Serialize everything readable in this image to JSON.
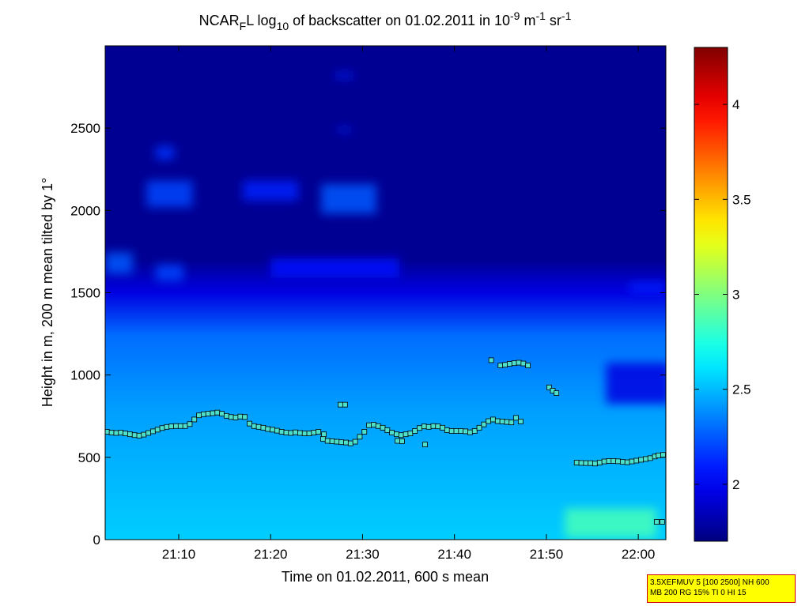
{
  "chart_data": {
    "type": "heatmap",
    "title": {
      "prefix": "NCAR",
      "sub1": "F",
      "mid1": "L log",
      "sub2": "10",
      "mid2": " of backscatter on 01.02.2011 in 10",
      "sup1": "-9",
      "mid3": " m",
      "sup2": "-1",
      "mid4": " sr",
      "sup3": "-1"
    },
    "xlabel": "Time on 01.02.2011, 600 s mean",
    "ylabel": "Height in m, 200 m mean tilted by 1°",
    "x_unit": "minutes after 21:00",
    "xlim": [
      2,
      63
    ],
    "ylim": [
      0,
      3000
    ],
    "x_ticks": [
      {
        "value": 10,
        "label": "21:10"
      },
      {
        "value": 20,
        "label": "21:20"
      },
      {
        "value": 30,
        "label": "21:30"
      },
      {
        "value": 40,
        "label": "21:40"
      },
      {
        "value": 50,
        "label": "21:50"
      },
      {
        "value": 60,
        "label": "22:00"
      }
    ],
    "y_ticks": [
      {
        "value": 0,
        "label": "0"
      },
      {
        "value": 500,
        "label": "500"
      },
      {
        "value": 1000,
        "label": "1000"
      },
      {
        "value": 1500,
        "label": "1500"
      },
      {
        "value": 2000,
        "label": "2000"
      },
      {
        "value": 2500,
        "label": "2500"
      }
    ],
    "colorbar": {
      "range": [
        1.7,
        4.3
      ],
      "ticks": [
        {
          "value": 2,
          "label": "2"
        },
        {
          "value": 2.5,
          "label": "2.5"
        },
        {
          "value": 3,
          "label": "3"
        },
        {
          "value": 3.5,
          "label": "3.5"
        },
        {
          "value": 4,
          "label": "4"
        }
      ],
      "colormap": "jet"
    },
    "field": {
      "surface_value": 2.55,
      "aerosol_top_value": 2.3,
      "free_troposphere_value": 1.75,
      "aerosol_top_height": [
        {
          "x": 2,
          "y": 1350
        },
        {
          "x": 10,
          "y": 1380
        },
        {
          "x": 20,
          "y": 1400
        },
        {
          "x": 30,
          "y": 1350
        },
        {
          "x": 40,
          "y": 1300
        },
        {
          "x": 50,
          "y": 1250
        },
        {
          "x": 55,
          "y": 1220
        },
        {
          "x": 63,
          "y": 1200
        }
      ],
      "patches": [
        {
          "x": 3.5,
          "y": 1680,
          "w": 3,
          "h": 130,
          "value": 2.25
        },
        {
          "x": 9,
          "y": 1620,
          "w": 3,
          "h": 100,
          "value": 2.2
        },
        {
          "x": 9,
          "y": 2100,
          "w": 5,
          "h": 160,
          "value": 2.2
        },
        {
          "x": 8.5,
          "y": 2350,
          "w": 2,
          "h": 80,
          "value": 2.15
        },
        {
          "x": 20,
          "y": 2120,
          "w": 6,
          "h": 120,
          "value": 2.1
        },
        {
          "x": 28.5,
          "y": 2070,
          "w": 6,
          "h": 180,
          "value": 2.25
        },
        {
          "x": 27,
          "y": 1650,
          "w": 14,
          "h": 120,
          "value": 2.05
        },
        {
          "x": 61,
          "y": 1530,
          "w": 4,
          "h": 60,
          "value": 2.1
        },
        {
          "x": 60,
          "y": 950,
          "w": 7,
          "h": 250,
          "value": 1.95
        },
        {
          "x": 28,
          "y": 2820,
          "w": 2,
          "h": 30,
          "value": 2.1
        },
        {
          "x": 28,
          "y": 2490,
          "w": 1.5,
          "h": 25,
          "value": 2.1
        },
        {
          "x": 57,
          "y": 100,
          "w": 10,
          "h": 180,
          "value": 2.85
        }
      ]
    },
    "markers": {
      "mid_layer": [
        {
          "x": 2.2,
          "y": 655
        },
        {
          "x": 2.7,
          "y": 650
        },
        {
          "x": 3.2,
          "y": 648
        },
        {
          "x": 3.7,
          "y": 650
        },
        {
          "x": 4.2,
          "y": 645
        },
        {
          "x": 4.7,
          "y": 640
        },
        {
          "x": 5.2,
          "y": 635
        },
        {
          "x": 5.7,
          "y": 632
        },
        {
          "x": 6.2,
          "y": 638
        },
        {
          "x": 6.7,
          "y": 648
        },
        {
          "x": 7.2,
          "y": 658
        },
        {
          "x": 7.7,
          "y": 668
        },
        {
          "x": 8.2,
          "y": 678
        },
        {
          "x": 8.7,
          "y": 685
        },
        {
          "x": 9.2,
          "y": 688
        },
        {
          "x": 9.7,
          "y": 690
        },
        {
          "x": 10.2,
          "y": 690
        },
        {
          "x": 10.7,
          "y": 690
        },
        {
          "x": 11.2,
          "y": 702
        },
        {
          "x": 11.7,
          "y": 730
        },
        {
          "x": 12.2,
          "y": 755
        },
        {
          "x": 12.7,
          "y": 762
        },
        {
          "x": 13.2,
          "y": 765
        },
        {
          "x": 13.7,
          "y": 768
        },
        {
          "x": 14.2,
          "y": 772
        },
        {
          "x": 14.7,
          "y": 765
        },
        {
          "x": 15.2,
          "y": 752
        },
        {
          "x": 15.7,
          "y": 745
        },
        {
          "x": 16.2,
          "y": 742
        },
        {
          "x": 16.7,
          "y": 748
        },
        {
          "x": 17.2,
          "y": 745
        },
        {
          "x": 17.7,
          "y": 705
        },
        {
          "x": 18.2,
          "y": 690
        },
        {
          "x": 18.7,
          "y": 685
        },
        {
          "x": 19.2,
          "y": 680
        },
        {
          "x": 19.7,
          "y": 672
        },
        {
          "x": 20.2,
          "y": 668
        },
        {
          "x": 20.7,
          "y": 662
        },
        {
          "x": 21.2,
          "y": 655
        },
        {
          "x": 21.7,
          "y": 650
        },
        {
          "x": 22.2,
          "y": 648
        },
        {
          "x": 22.7,
          "y": 652
        },
        {
          "x": 23.2,
          "y": 648
        },
        {
          "x": 23.7,
          "y": 645
        },
        {
          "x": 24.2,
          "y": 645
        },
        {
          "x": 24.7,
          "y": 650
        },
        {
          "x": 25.2,
          "y": 655
        },
        {
          "x": 25.7,
          "y": 612
        },
        {
          "x": 26.2,
          "y": 600
        },
        {
          "x": 26.7,
          "y": 598
        },
        {
          "x": 27.2,
          "y": 595
        },
        {
          "x": 27.7,
          "y": 592
        },
        {
          "x": 28.2,
          "y": 590
        },
        {
          "x": 28.7,
          "y": 585
        },
        {
          "x": 29.2,
          "y": 595
        },
        {
          "x": 29.7,
          "y": 625
        },
        {
          "x": 30.2,
          "y": 655
        },
        {
          "x": 30.7,
          "y": 695
        },
        {
          "x": 31.2,
          "y": 698
        },
        {
          "x": 31.7,
          "y": 690
        },
        {
          "x": 32.2,
          "y": 680
        },
        {
          "x": 32.7,
          "y": 665
        },
        {
          "x": 33.2,
          "y": 650
        },
        {
          "x": 33.7,
          "y": 640
        },
        {
          "x": 34.2,
          "y": 635
        },
        {
          "x": 34.7,
          "y": 640
        },
        {
          "x": 35.2,
          "y": 645
        },
        {
          "x": 35.7,
          "y": 660
        },
        {
          "x": 36.2,
          "y": 678
        },
        {
          "x": 36.7,
          "y": 688
        },
        {
          "x": 37.2,
          "y": 685
        },
        {
          "x": 37.7,
          "y": 690
        },
        {
          "x": 38.2,
          "y": 688
        },
        {
          "x": 38.7,
          "y": 680
        },
        {
          "x": 39.2,
          "y": 665
        },
        {
          "x": 39.7,
          "y": 660
        },
        {
          "x": 40.2,
          "y": 660
        },
        {
          "x": 40.7,
          "y": 660
        },
        {
          "x": 41.2,
          "y": 658
        },
        {
          "x": 41.7,
          "y": 652
        },
        {
          "x": 42.2,
          "y": 660
        },
        {
          "x": 42.7,
          "y": 680
        },
        {
          "x": 43.2,
          "y": 700
        },
        {
          "x": 43.7,
          "y": 720
        },
        {
          "x": 44.2,
          "y": 730
        },
        {
          "x": 44.7,
          "y": 720
        },
        {
          "x": 45.2,
          "y": 718
        },
        {
          "x": 45.7,
          "y": 715
        },
        {
          "x": 46.2,
          "y": 712
        },
        {
          "x": 46.7,
          "y": 740
        },
        {
          "x": 47.2,
          "y": 718
        },
        {
          "x": 25.8,
          "y": 640
        },
        {
          "x": 27.6,
          "y": 820
        },
        {
          "x": 28.1,
          "y": 820
        },
        {
          "x": 33.8,
          "y": 600
        },
        {
          "x": 34.3,
          "y": 598
        },
        {
          "x": 36.8,
          "y": 578
        }
      ],
      "upper_layer": [
        {
          "x": 44.0,
          "y": 1090
        },
        {
          "x": 45.0,
          "y": 1058
        },
        {
          "x": 45.5,
          "y": 1062
        },
        {
          "x": 46.0,
          "y": 1068
        },
        {
          "x": 46.5,
          "y": 1072
        },
        {
          "x": 47.0,
          "y": 1075
        },
        {
          "x": 47.5,
          "y": 1070
        },
        {
          "x": 48.0,
          "y": 1058
        },
        {
          "x": 50.3,
          "y": 925
        },
        {
          "x": 50.7,
          "y": 905
        },
        {
          "x": 51.1,
          "y": 890
        }
      ],
      "late_layer": [
        {
          "x": 53.3,
          "y": 468
        },
        {
          "x": 53.8,
          "y": 466
        },
        {
          "x": 54.3,
          "y": 465
        },
        {
          "x": 54.8,
          "y": 465
        },
        {
          "x": 55.3,
          "y": 462
        },
        {
          "x": 55.8,
          "y": 468
        },
        {
          "x": 56.3,
          "y": 475
        },
        {
          "x": 56.8,
          "y": 478
        },
        {
          "x": 57.3,
          "y": 478
        },
        {
          "x": 57.8,
          "y": 476
        },
        {
          "x": 58.3,
          "y": 472
        },
        {
          "x": 58.8,
          "y": 470
        },
        {
          "x": 59.3,
          "y": 475
        },
        {
          "x": 59.8,
          "y": 480
        },
        {
          "x": 60.3,
          "y": 485
        },
        {
          "x": 60.8,
          "y": 490
        },
        {
          "x": 61.3,
          "y": 495
        },
        {
          "x": 61.8,
          "y": 505
        },
        {
          "x": 62.2,
          "y": 512
        },
        {
          "x": 62.7,
          "y": 515
        }
      ],
      "near_ground": [
        {
          "x": 62.0,
          "y": 108
        },
        {
          "x": 62.6,
          "y": 108
        }
      ]
    }
  },
  "info_box": {
    "line1": "3.5XEFMUV 5 [100 2500] NH 600",
    "line2": "MB 200 RG 15% TI 0 HI 15",
    "background": "#ffff00",
    "border": "#cc0000"
  }
}
